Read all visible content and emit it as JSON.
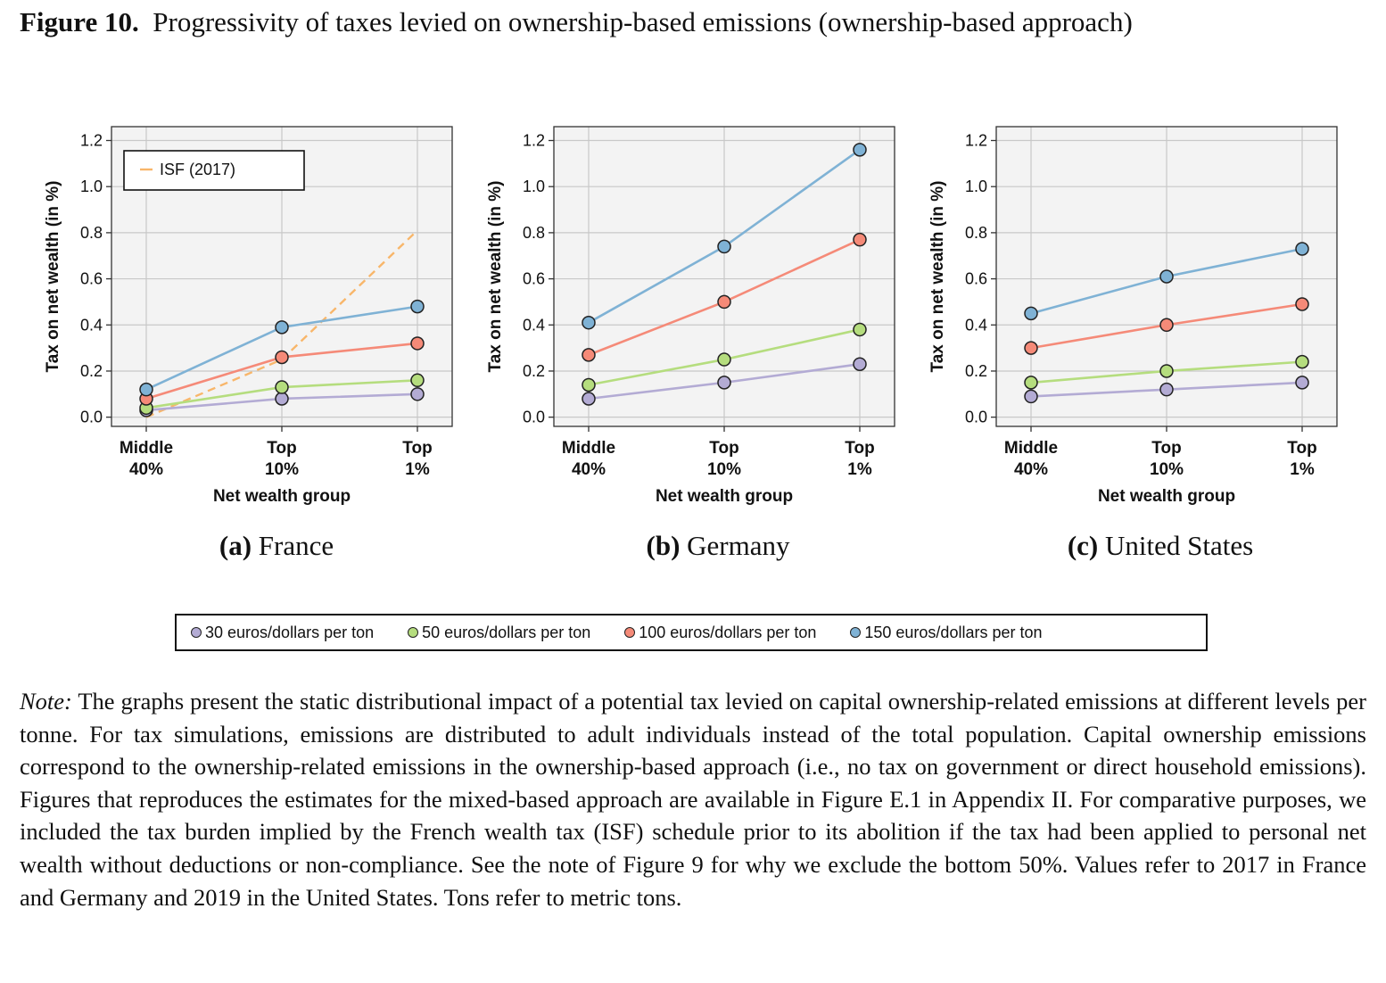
{
  "figure": {
    "label": "Figure 10.",
    "title": "Progressivity of taxes levied on ownership-based emissions (ownership-based approach)"
  },
  "captions": [
    {
      "letter": "(a)",
      "text": "France"
    },
    {
      "letter": "(b)",
      "text": "Germany"
    },
    {
      "letter": "(c)",
      "text": "United States"
    }
  ],
  "legend": {
    "items": [
      {
        "label": "30 euros/dollars per ton",
        "color": "#b3abd4"
      },
      {
        "label": "50 euros/dollars per ton",
        "color": "#b5dd7e"
      },
      {
        "label": "100 euros/dollars per ton",
        "color": "#f58a78"
      },
      {
        "label": "150 euros/dollars per ton",
        "color": "#7fb2d5"
      }
    ]
  },
  "note": {
    "label": "Note:",
    "text": "The graphs present the static distributional impact of a potential tax levied on capital ownership-related emissions at different levels per tonne. For tax simulations, emissions are distributed to adult individuals instead of the total population. Capital ownership emissions correspond to the ownership-related emissions in the ownership-based approach (i.e., no tax on government or direct household emissions). Figures that reproduces the estimates for the mixed-based approach are available in Figure E.1 in Appendix II. For comparative purposes, we included the tax burden implied by the French wealth tax (ISF) schedule prior to its abolition if the tax had been applied to personal net wealth without deductions or non-compliance. See the note of Figure 9 for why we exclude the bottom 50%. Values refer to 2017 in France and Germany and 2019 in the United States. Tons refer to metric tons."
  },
  "chart_data": [
    {
      "type": "line",
      "panel": "(a) France",
      "xlabel": "Net wealth group",
      "ylabel": "Tax on net wealth (in %)",
      "categories": [
        [
          "Middle",
          "40%"
        ],
        [
          "Top",
          "10%"
        ],
        [
          "Top",
          "1%"
        ]
      ],
      "ylim": [
        -0.04,
        1.26
      ],
      "yticks": [
        "0.0",
        "0.2",
        "0.4",
        "0.6",
        "0.8",
        "1.0",
        "1.2"
      ],
      "grid": true,
      "series": [
        {
          "name": "30 euros/dollars per ton",
          "color": "#b3abd4",
          "values": [
            0.03,
            0.08,
            0.1
          ]
        },
        {
          "name": "50 euros/dollars per ton",
          "color": "#b5dd7e",
          "values": [
            0.04,
            0.13,
            0.16
          ]
        },
        {
          "name": "100 euros/dollars per ton",
          "color": "#f58a78",
          "values": [
            0.08,
            0.26,
            0.32
          ]
        },
        {
          "name": "150 euros/dollars per ton",
          "color": "#7fb2d5",
          "values": [
            0.12,
            0.39,
            0.48
          ]
        }
      ],
      "reference": {
        "name": "ISF (2017)",
        "color": "#f8b66a",
        "dashed": true,
        "values": [
          0.0,
          0.25,
          0.81
        ]
      },
      "legend": {
        "position": "top-left",
        "label": "ISF (2017)"
      }
    },
    {
      "type": "line",
      "panel": "(b) Germany",
      "xlabel": "Net wealth group",
      "ylabel": "Tax on net wealth (in %)",
      "categories": [
        [
          "Middle",
          "40%"
        ],
        [
          "Top",
          "10%"
        ],
        [
          "Top",
          "1%"
        ]
      ],
      "ylim": [
        -0.04,
        1.26
      ],
      "yticks": [
        "0.0",
        "0.2",
        "0.4",
        "0.6",
        "0.8",
        "1.0",
        "1.2"
      ],
      "grid": true,
      "series": [
        {
          "name": "30 euros/dollars per ton",
          "color": "#b3abd4",
          "values": [
            0.08,
            0.15,
            0.23
          ]
        },
        {
          "name": "50 euros/dollars per ton",
          "color": "#b5dd7e",
          "values": [
            0.14,
            0.25,
            0.38
          ]
        },
        {
          "name": "100 euros/dollars per ton",
          "color": "#f58a78",
          "values": [
            0.27,
            0.5,
            0.77
          ]
        },
        {
          "name": "150 euros/dollars per ton",
          "color": "#7fb2d5",
          "values": [
            0.41,
            0.74,
            1.16
          ]
        }
      ]
    },
    {
      "type": "line",
      "panel": "(c) United States",
      "xlabel": "Net wealth group",
      "ylabel": "Tax on net wealth (in %)",
      "categories": [
        [
          "Middle",
          "40%"
        ],
        [
          "Top",
          "10%"
        ],
        [
          "Top",
          "1%"
        ]
      ],
      "ylim": [
        -0.04,
        1.26
      ],
      "yticks": [
        "0.0",
        "0.2",
        "0.4",
        "0.6",
        "0.8",
        "1.0",
        "1.2"
      ],
      "grid": true,
      "series": [
        {
          "name": "30 euros/dollars per ton",
          "color": "#b3abd4",
          "values": [
            0.09,
            0.12,
            0.15
          ]
        },
        {
          "name": "50 euros/dollars per ton",
          "color": "#b5dd7e",
          "values": [
            0.15,
            0.2,
            0.24
          ]
        },
        {
          "name": "100 euros/dollars per ton",
          "color": "#f58a78",
          "values": [
            0.3,
            0.4,
            0.49
          ]
        },
        {
          "name": "150 euros/dollars per ton",
          "color": "#7fb2d5",
          "values": [
            0.45,
            0.61,
            0.73
          ]
        }
      ]
    }
  ]
}
